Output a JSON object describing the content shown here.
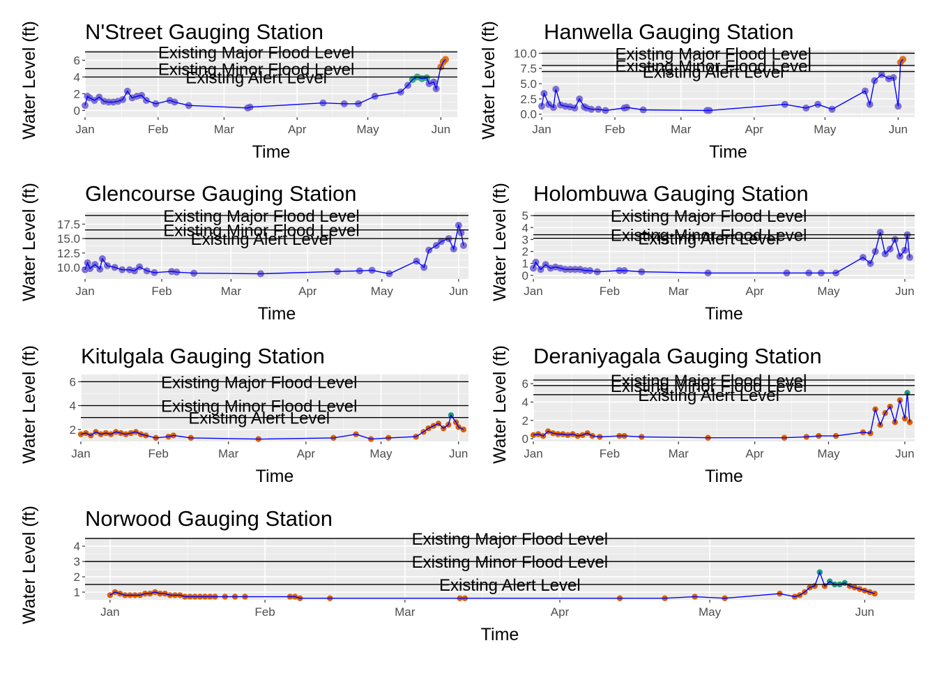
{
  "chart_data": [
    {
      "type": "line",
      "title": "N'Street Gauging Station",
      "xlabel": "Time",
      "ylabel": "Water Level (ft)",
      "xlim": [
        "2023-01-01",
        "2023-06-08"
      ],
      "ylim": [
        -0.8,
        7.2
      ],
      "y_ticks": [
        0,
        2,
        4,
        6
      ],
      "x_ticks": [
        {
          "label": "Jan",
          "date": "2023-01-01"
        },
        {
          "label": "Feb",
          "date": "2023-02-01"
        },
        {
          "label": "Mar",
          "date": "2023-03-01"
        },
        {
          "label": "Apr",
          "date": "2023-04-01"
        },
        {
          "label": "May",
          "date": "2023-05-01"
        },
        {
          "label": "Jun",
          "date": "2023-06-01"
        }
      ],
      "grid": true,
      "reference_lines": [
        {
          "label": "Existing Major Flood Level",
          "y": 7.0
        },
        {
          "label": "Existing Minor Flood Level",
          "y": 5.0
        },
        {
          "label": "Existing Alert Level",
          "y": 4.0
        }
      ],
      "series": [
        {
          "x": [
            "2023-01-01",
            "2023-01-02",
            "2023-01-03",
            "2023-01-05",
            "2023-01-07",
            "2023-01-09",
            "2023-01-11",
            "2023-01-13",
            "2023-01-15",
            "2023-01-17",
            "2023-01-19",
            "2023-01-21",
            "2023-01-23",
            "2023-01-25",
            "2023-01-27",
            "2023-01-31",
            "2023-02-06",
            "2023-02-08",
            "2023-02-14",
            "2023-03-11",
            "2023-03-12",
            "2023-04-12",
            "2023-04-21",
            "2023-04-27",
            "2023-05-04",
            "2023-05-15",
            "2023-05-18",
            "2023-05-20",
            "2023-05-22",
            "2023-05-24",
            "2023-05-26",
            "2023-05-27",
            "2023-05-29",
            "2023-05-30",
            "2023-06-01",
            "2023-06-02",
            "2023-06-03"
          ],
          "y": [
            0.6,
            1.7,
            1.5,
            1.2,
            1.6,
            1.1,
            1.0,
            1.0,
            1.1,
            1.3,
            2.3,
            1.5,
            1.7,
            1.8,
            1.2,
            0.8,
            1.2,
            1.0,
            0.6,
            0.3,
            0.4,
            0.9,
            0.8,
            0.8,
            1.7,
            2.2,
            3.0,
            3.7,
            4.0,
            3.8,
            3.9,
            3.2,
            3.4,
            2.6,
            5.2,
            5.8,
            6.1
          ]
        }
      ]
    },
    {
      "type": "line",
      "title": "Hanwella Gauging Station",
      "xlabel": "Time",
      "ylabel": "Water Level (ft)",
      "xlim": [
        "2023-01-01",
        "2023-06-08"
      ],
      "ylim": [
        -0.5,
        10.5
      ],
      "y_ticks": [
        0.0,
        2.5,
        5.0,
        7.5,
        10.0
      ],
      "y_tick_labels": [
        "0.0",
        "2.5",
        "5.0",
        "7.5",
        "10.0"
      ],
      "x_ticks": [
        {
          "label": "Jan",
          "date": "2023-01-01"
        },
        {
          "label": "Feb",
          "date": "2023-02-01"
        },
        {
          "label": "Mar",
          "date": "2023-03-01"
        },
        {
          "label": "Apr",
          "date": "2023-04-01"
        },
        {
          "label": "May",
          "date": "2023-05-01"
        },
        {
          "label": "Jun",
          "date": "2023-06-01"
        }
      ],
      "grid": true,
      "reference_lines": [
        {
          "label": "Existing Major Flood Level",
          "y": 10.0
        },
        {
          "label": "Existing Minor Flood Level",
          "y": 8.0
        },
        {
          "label": "Existing Alert Level",
          "y": 7.0
        }
      ],
      "series": [
        {
          "x": [
            "2023-01-01",
            "2023-01-02",
            "2023-01-04",
            "2023-01-06",
            "2023-01-07",
            "2023-01-09",
            "2023-01-11",
            "2023-01-13",
            "2023-01-15",
            "2023-01-17",
            "2023-01-19",
            "2023-01-20",
            "2023-01-22",
            "2023-01-25",
            "2023-01-28",
            "2023-02-05",
            "2023-02-06",
            "2023-02-13",
            "2023-03-12",
            "2023-03-13",
            "2023-04-14",
            "2023-04-23",
            "2023-04-28",
            "2023-05-04",
            "2023-05-18",
            "2023-05-20",
            "2023-05-22",
            "2023-05-25",
            "2023-05-28",
            "2023-05-30",
            "2023-06-01",
            "2023-06-02",
            "2023-06-03"
          ],
          "y": [
            1.3,
            3.4,
            1.6,
            1.1,
            4.1,
            1.5,
            1.3,
            1.2,
            1.0,
            2.5,
            1.2,
            1.0,
            0.8,
            0.8,
            0.6,
            1.0,
            1.1,
            0.7,
            0.6,
            0.6,
            1.6,
            1.0,
            1.6,
            0.8,
            3.8,
            1.6,
            5.5,
            6.5,
            5.8,
            6.0,
            1.3,
            8.5,
            9.0
          ]
        }
      ]
    },
    {
      "type": "line",
      "title": "Glencourse Gauging Station",
      "xlabel": "Time",
      "ylabel": "Water Level (ft)",
      "xlim": [
        "2023-01-01",
        "2023-06-05"
      ],
      "ylim": [
        8.0,
        19.6
      ],
      "y_ticks": [
        10.0,
        12.5,
        15.0,
        17.5
      ],
      "y_tick_labels": [
        "10.0",
        "12.5",
        "15.0",
        "17.5"
      ],
      "x_ticks": [
        {
          "label": "Jan",
          "date": "2023-01-01"
        },
        {
          "label": "Feb",
          "date": "2023-02-01"
        },
        {
          "label": "Mar",
          "date": "2023-03-01"
        },
        {
          "label": "Apr",
          "date": "2023-04-01"
        },
        {
          "label": "May",
          "date": "2023-05-01"
        },
        {
          "label": "Jun",
          "date": "2023-06-01"
        }
      ],
      "grid": true,
      "reference_lines": [
        {
          "label": "Existing Major Flood Level",
          "y": 19.0
        },
        {
          "label": "Existing Minor Flood Level",
          "y": 16.5
        },
        {
          "label": "Existing Alert Level",
          "y": 15.0
        }
      ],
      "series": [
        {
          "x": [
            "2023-01-01",
            "2023-01-02",
            "2023-01-03",
            "2023-01-05",
            "2023-01-07",
            "2023-01-08",
            "2023-01-10",
            "2023-01-13",
            "2023-01-16",
            "2023-01-19",
            "2023-01-21",
            "2023-01-23",
            "2023-01-26",
            "2023-01-29",
            "2023-02-05",
            "2023-02-07",
            "2023-02-14",
            "2023-03-13",
            "2023-04-13",
            "2023-04-22",
            "2023-04-27",
            "2023-05-04",
            "2023-05-15",
            "2023-05-18",
            "2023-05-20",
            "2023-05-23",
            "2023-05-25",
            "2023-05-28",
            "2023-05-30",
            "2023-06-01",
            "2023-06-02",
            "2023-06-03"
          ],
          "y": [
            9.6,
            10.8,
            9.8,
            10.5,
            9.7,
            11.5,
            10.3,
            10.0,
            9.6,
            9.6,
            9.4,
            10.1,
            9.4,
            9.1,
            9.3,
            9.2,
            9.0,
            8.9,
            9.3,
            9.4,
            9.5,
            8.9,
            11.1,
            10.0,
            13.0,
            13.8,
            14.5,
            15.0,
            13.2,
            17.3,
            16.0,
            13.8
          ]
        }
      ]
    },
    {
      "type": "line",
      "title": "Holombuwa Gauging Station",
      "xlabel": "Time",
      "ylabel": "Water Level (ft)",
      "xlim": [
        "2023-01-01",
        "2023-06-05"
      ],
      "ylim": [
        -0.3,
        5.3
      ],
      "y_ticks": [
        0,
        1,
        2,
        3,
        4,
        5
      ],
      "x_ticks": [
        {
          "label": "Jan",
          "date": "2023-01-01"
        },
        {
          "label": "Feb",
          "date": "2023-02-01"
        },
        {
          "label": "Mar",
          "date": "2023-03-01"
        },
        {
          "label": "Apr",
          "date": "2023-04-01"
        },
        {
          "label": "May",
          "date": "2023-05-01"
        },
        {
          "label": "Jun",
          "date": "2023-06-01"
        }
      ],
      "grid": true,
      "reference_lines": [
        {
          "label": "Existing Major Flood Level",
          "y": 5.0
        },
        {
          "label": "Existing Minor Flood Level",
          "y": 3.4
        },
        {
          "label": "Existing Alert Level",
          "y": 3.1
        }
      ],
      "series": [
        {
          "x": [
            "2023-01-01",
            "2023-01-02",
            "2023-01-04",
            "2023-01-06",
            "2023-01-08",
            "2023-01-10",
            "2023-01-12",
            "2023-01-14",
            "2023-01-16",
            "2023-01-18",
            "2023-01-20",
            "2023-01-22",
            "2023-01-24",
            "2023-01-27",
            "2023-02-05",
            "2023-02-07",
            "2023-02-14",
            "2023-03-13",
            "2023-04-14",
            "2023-04-23",
            "2023-04-28",
            "2023-05-04",
            "2023-05-15",
            "2023-05-18",
            "2023-05-20",
            "2023-05-22",
            "2023-05-24",
            "2023-05-26",
            "2023-05-28",
            "2023-05-30",
            "2023-06-01",
            "2023-06-02",
            "2023-06-03"
          ],
          "y": [
            0.6,
            1.1,
            0.5,
            0.9,
            0.6,
            0.7,
            0.6,
            0.5,
            0.5,
            0.5,
            0.5,
            0.4,
            0.4,
            0.3,
            0.4,
            0.4,
            0.3,
            0.2,
            0.2,
            0.2,
            0.2,
            0.2,
            1.5,
            1.0,
            2.0,
            3.6,
            1.8,
            2.2,
            3.0,
            1.6,
            2.1,
            3.4,
            1.5
          ]
        }
      ]
    },
    {
      "type": "line",
      "title": "Kitulgala Gauging Station",
      "xlabel": "Time",
      "ylabel": "Water Level (ft)",
      "xlim": [
        "2023-01-01",
        "2023-06-05"
      ],
      "ylim": [
        1.0,
        6.6
      ],
      "y_ticks": [
        2,
        4,
        6
      ],
      "x_ticks": [
        {
          "label": "Jan",
          "date": "2023-01-01"
        },
        {
          "label": "Feb",
          "date": "2023-02-01"
        },
        {
          "label": "Mar",
          "date": "2023-03-01"
        },
        {
          "label": "Apr",
          "date": "2023-04-01"
        },
        {
          "label": "May",
          "date": "2023-05-01"
        },
        {
          "label": "Jun",
          "date": "2023-06-01"
        }
      ],
      "grid": true,
      "reference_lines": [
        {
          "label": "Existing Major Flood Level",
          "y": 6.0
        },
        {
          "label": "Existing Minor Flood Level",
          "y": 4.0
        },
        {
          "label": "Existing Alert Level",
          "y": 3.0
        }
      ],
      "series": [
        {
          "x": [
            "2023-01-01",
            "2023-01-03",
            "2023-01-05",
            "2023-01-07",
            "2023-01-09",
            "2023-01-11",
            "2023-01-13",
            "2023-01-15",
            "2023-01-17",
            "2023-01-19",
            "2023-01-21",
            "2023-01-23",
            "2023-01-25",
            "2023-01-27",
            "2023-01-31",
            "2023-02-05",
            "2023-02-07",
            "2023-02-14",
            "2023-03-13",
            "2023-04-12",
            "2023-04-21",
            "2023-04-27",
            "2023-05-04",
            "2023-05-15",
            "2023-05-18",
            "2023-05-20",
            "2023-05-22",
            "2023-05-24",
            "2023-05-26",
            "2023-05-28",
            "2023-05-29",
            "2023-05-31",
            "2023-06-01",
            "2023-06-03"
          ],
          "y": [
            1.6,
            1.7,
            1.5,
            1.8,
            1.6,
            1.7,
            1.6,
            1.8,
            1.7,
            1.6,
            1.7,
            1.8,
            1.6,
            1.5,
            1.3,
            1.4,
            1.5,
            1.3,
            1.2,
            1.3,
            1.6,
            1.2,
            1.3,
            1.4,
            1.8,
            2.1,
            2.3,
            2.5,
            2.1,
            2.4,
            3.2,
            2.6,
            2.2,
            2.0
          ]
        }
      ]
    },
    {
      "type": "line",
      "title": "Deraniyagala Gauging Station",
      "xlabel": "Time",
      "ylabel": "Water Level (ft)",
      "xlim": [
        "2023-01-01",
        "2023-06-05"
      ],
      "ylim": [
        -0.3,
        7.0
      ],
      "y_ticks": [
        0,
        2,
        4,
        6
      ],
      "x_ticks": [
        {
          "label": "Jan",
          "date": "2023-01-01"
        },
        {
          "label": "Feb",
          "date": "2023-02-01"
        },
        {
          "label": "Mar",
          "date": "2023-03-01"
        },
        {
          "label": "Apr",
          "date": "2023-04-01"
        },
        {
          "label": "May",
          "date": "2023-05-01"
        },
        {
          "label": "Jun",
          "date": "2023-06-01"
        }
      ],
      "grid": true,
      "reference_lines": [
        {
          "label": "Existing Major Flood Level",
          "y": 6.4
        },
        {
          "label": "Existing Minor Flood Level",
          "y": 5.8
        },
        {
          "label": "Existing Alert Level",
          "y": 4.8
        }
      ],
      "series": [
        {
          "x": [
            "2023-01-01",
            "2023-01-03",
            "2023-01-05",
            "2023-01-07",
            "2023-01-09",
            "2023-01-11",
            "2023-01-13",
            "2023-01-15",
            "2023-01-17",
            "2023-01-19",
            "2023-01-21",
            "2023-01-23",
            "2023-01-25",
            "2023-01-28",
            "2023-02-05",
            "2023-02-07",
            "2023-02-14",
            "2023-03-13",
            "2023-04-13",
            "2023-04-22",
            "2023-04-27",
            "2023-05-04",
            "2023-05-15",
            "2023-05-18",
            "2023-05-20",
            "2023-05-22",
            "2023-05-24",
            "2023-05-26",
            "2023-05-28",
            "2023-05-30",
            "2023-06-01",
            "2023-06-02",
            "2023-06-03"
          ],
          "y": [
            0.4,
            0.5,
            0.3,
            0.8,
            0.6,
            0.5,
            0.5,
            0.4,
            0.5,
            0.3,
            0.4,
            0.6,
            0.3,
            0.2,
            0.3,
            0.3,
            0.2,
            0.1,
            0.1,
            0.2,
            0.3,
            0.3,
            0.7,
            0.6,
            3.2,
            1.5,
            2.8,
            3.5,
            1.8,
            4.2,
            2.2,
            5.0,
            1.8
          ]
        }
      ]
    },
    {
      "type": "line",
      "title": "Norwood Gauging Station",
      "xlabel": "Time",
      "ylabel": "Water Level (ft)",
      "xlim": [
        "2022-12-27",
        "2023-06-11"
      ],
      "ylim": [
        0.5,
        4.6
      ],
      "y_ticks": [
        1,
        2,
        3,
        4
      ],
      "x_ticks": [
        {
          "label": "Jan",
          "date": "2023-01-01"
        },
        {
          "label": "Feb",
          "date": "2023-02-01"
        },
        {
          "label": "Mar",
          "date": "2023-03-01"
        },
        {
          "label": "Apr",
          "date": "2023-04-01"
        },
        {
          "label": "May",
          "date": "2023-05-01"
        },
        {
          "label": "Jun",
          "date": "2023-06-01"
        }
      ],
      "grid": true,
      "reference_lines": [
        {
          "label": "Existing Major Flood Level",
          "y": 4.5
        },
        {
          "label": "Existing Minor Flood Level",
          "y": 3.0
        },
        {
          "label": "Existing Alert Level",
          "y": 1.5
        }
      ],
      "series": [
        {
          "x": [
            "2023-01-01",
            "2023-01-02",
            "2023-01-03",
            "2023-01-04",
            "2023-01-05",
            "2023-01-06",
            "2023-01-07",
            "2023-01-08",
            "2023-01-09",
            "2023-01-10",
            "2023-01-11",
            "2023-01-12",
            "2023-01-13",
            "2023-01-14",
            "2023-01-15",
            "2023-01-16",
            "2023-01-17",
            "2023-01-18",
            "2023-01-19",
            "2023-01-20",
            "2023-01-21",
            "2023-01-22",
            "2023-01-24",
            "2023-01-26",
            "2023-01-28",
            "2023-02-06",
            "2023-02-07",
            "2023-02-08",
            "2023-02-14",
            "2023-03-12",
            "2023-03-13",
            "2023-04-13",
            "2023-04-22",
            "2023-04-28",
            "2023-05-04",
            "2023-05-15",
            "2023-05-18",
            "2023-05-19",
            "2023-05-20",
            "2023-05-21",
            "2023-05-22",
            "2023-05-23",
            "2023-05-24",
            "2023-05-25",
            "2023-05-26",
            "2023-05-27",
            "2023-05-28",
            "2023-05-29",
            "2023-05-30",
            "2023-05-31",
            "2023-06-01",
            "2023-06-02",
            "2023-06-03"
          ],
          "y": [
            0.8,
            1.0,
            0.9,
            0.8,
            0.8,
            0.8,
            0.8,
            0.9,
            0.9,
            1.0,
            0.9,
            0.9,
            0.8,
            0.8,
            0.8,
            0.7,
            0.7,
            0.7,
            0.7,
            0.7,
            0.7,
            0.7,
            0.7,
            0.7,
            0.7,
            0.7,
            0.7,
            0.6,
            0.6,
            0.6,
            0.6,
            0.6,
            0.6,
            0.7,
            0.6,
            0.9,
            0.7,
            0.8,
            1.0,
            1.3,
            1.4,
            2.3,
            1.4,
            1.7,
            1.5,
            1.5,
            1.6,
            1.4,
            1.3,
            1.2,
            1.1,
            1.0,
            0.9
          ]
        }
      ]
    }
  ]
}
